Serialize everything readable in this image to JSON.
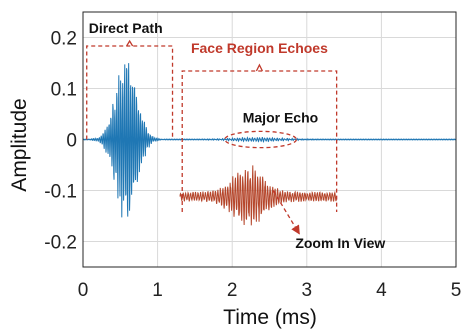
{
  "chart_data": {
    "type": "line",
    "xlabel": "Time (ms)",
    "ylabel": "Amplitude",
    "xlim": [
      0,
      5
    ],
    "ylim": [
      -0.25,
      0.25
    ],
    "grid": true,
    "xticks": [
      "0",
      "1",
      "2",
      "3",
      "4",
      "5"
    ],
    "yticks": [
      "0.2",
      "0.1",
      "0",
      "-0.1",
      "-0.2"
    ],
    "colors": {
      "signal": "#1f77b4",
      "zoom": "#b5462b",
      "annotation_black": "#111111",
      "annotation_red": "#c0392b",
      "grid": "#d9d9d9"
    },
    "series": [
      {
        "role": "received-signal",
        "bursts": [
          {
            "start": 0.02,
            "end": 1.1,
            "center": 0.58,
            "width": 0.2,
            "peak": 0.17,
            "cycles_per_ms": 38
          },
          {
            "start": 1.3,
            "end": 3.4,
            "center": 2.35,
            "width": 0.45,
            "peak": 0.004,
            "cycles_per_ms": 30
          }
        ]
      },
      {
        "role": "zoom-in-view",
        "x_range": [
          1.3,
          3.4
        ],
        "baseline": -0.112,
        "peak_offset": 0.055,
        "center": 2.22,
        "width": 0.28,
        "floor_offset": 0.01,
        "cycles_per_ms": 30
      }
    ],
    "annotations": {
      "direct_path": {
        "text": "Direct Path",
        "x_range": [
          0.05,
          1.2
        ]
      },
      "face_region": {
        "text": "Face Region Echoes",
        "x_range": [
          1.33,
          3.4
        ]
      },
      "major_echo": {
        "text": "Major Echo",
        "ellipse_center": [
          2.38,
          0.0
        ],
        "ellipse_radius_x": 0.48,
        "ellipse_radius_y": 0.016
      },
      "zoom": {
        "text": "Zoom In View",
        "arrow_from": [
          2.55,
          -0.1
        ],
        "arrow_to": [
          2.9,
          -0.185
        ]
      }
    }
  }
}
